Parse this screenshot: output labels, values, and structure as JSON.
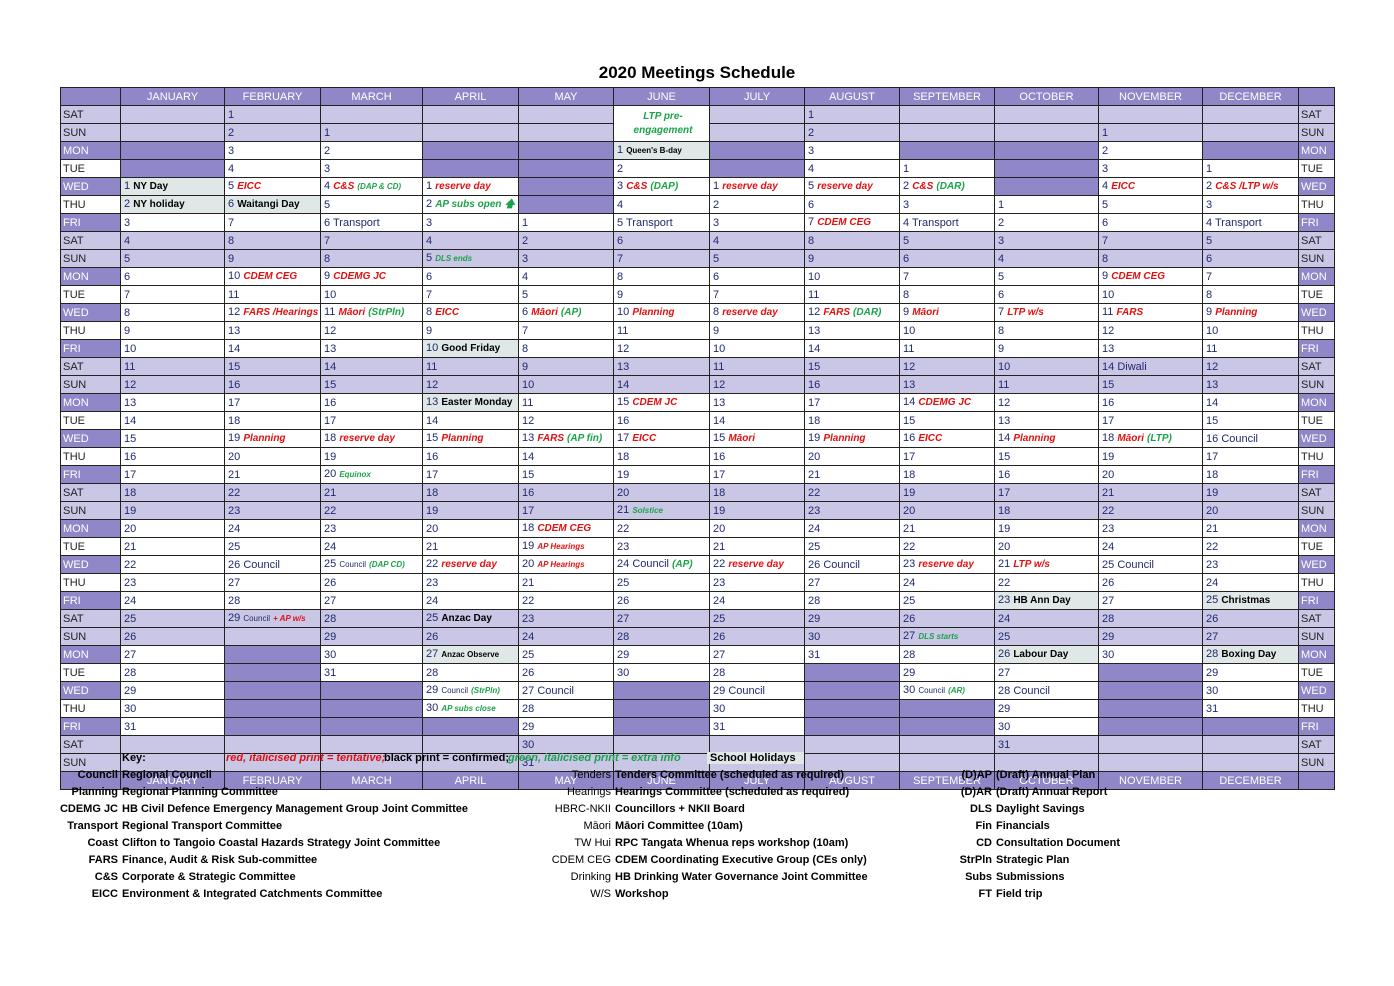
{
  "title": "2020 Meetings Schedule",
  "months": [
    "JANUARY",
    "FEBRUARY",
    "MARCH",
    "APRIL",
    "MAY",
    "JUNE",
    "JULY",
    "AUGUST",
    "SEPTEMBER",
    "OCTOBER",
    "NOVEMBER",
    "DECEMBER"
  ],
  "footer_months": [
    "JANUARY",
    "FEBRUARY",
    "MARCH",
    "APRIL",
    "MAY",
    "JUNE",
    "JULY",
    "AUGUST",
    "SEPTEMBER",
    "OCTOBER",
    "NOVEMBER",
    "DECEMBER"
  ],
  "weekdays": [
    "SAT",
    "SUN",
    "MON",
    "TUE",
    "WED",
    "THU",
    "FRI"
  ],
  "colors": {
    "header": "#8f87c8",
    "weekend": "#cac6e6",
    "highlight": "#dfe7e7",
    "tentative": "#e01010",
    "extra": "#1aa34a"
  },
  "month_start_offsets": [
    4,
    0,
    1,
    4,
    6,
    2,
    4,
    0,
    3,
    5,
    1,
    3
  ],
  "month_lengths": [
    31,
    29,
    31,
    30,
    31,
    30,
    31,
    31,
    30,
    31,
    30,
    31
  ],
  "entries": {
    "0-1": {
      "parts": [
        [
          "k",
          "NY Day"
        ]
      ],
      "hl": true
    },
    "0-2": {
      "parts": [
        [
          "k",
          "NY holiday"
        ]
      ],
      "hl": true
    },
    "1-5": {
      "parts": [
        [
          "r",
          "EICC"
        ]
      ]
    },
    "1-6": {
      "parts": [
        [
          "k",
          "Waitangi Day"
        ]
      ],
      "hl": true
    },
    "1-10": {
      "parts": [
        [
          "r",
          "CDEM CEG"
        ]
      ]
    },
    "1-12": {
      "parts": [
        [
          "r",
          "FARS /Hearings"
        ]
      ]
    },
    "1-19": {
      "parts": [
        [
          "r",
          "Planning"
        ]
      ]
    },
    "1-26": {
      "parts": [
        [
          "n",
          "Council"
        ]
      ]
    },
    "1-29": {
      "parts": [
        [
          "ns",
          "Council"
        ],
        [
          "rs",
          "+ AP w/s"
        ]
      ]
    },
    "2-4": {
      "parts": [
        [
          "r",
          "C&S"
        ],
        [
          "gs",
          "(DAP & CD)"
        ]
      ]
    },
    "2-6": {
      "parts": [
        [
          "n",
          "Transport"
        ]
      ]
    },
    "2-9": {
      "parts": [
        [
          "r",
          "CDEMG JC"
        ]
      ]
    },
    "2-11": {
      "parts": [
        [
          "r",
          "Māori"
        ],
        [
          "g",
          "(StrPln)"
        ]
      ]
    },
    "2-18": {
      "parts": [
        [
          "r",
          "reserve day"
        ]
      ]
    },
    "2-20": {
      "parts": [
        [
          "gs",
          "Equinox"
        ]
      ]
    },
    "2-25": {
      "parts": [
        [
          "ns",
          "Council"
        ],
        [
          "gs",
          "(DAP CD)"
        ]
      ]
    },
    "3-1": {
      "parts": [
        [
          "r",
          "reserve day"
        ]
      ]
    },
    "3-2": {
      "parts": [
        [
          "g",
          "AP subs open"
        ],
        [
          "g",
          "🡅"
        ]
      ]
    },
    "3-5": {
      "parts": [
        [
          "gs",
          "DLS ends"
        ]
      ]
    },
    "3-8": {
      "parts": [
        [
          "r",
          "EICC"
        ]
      ]
    },
    "3-10": {
      "parts": [
        [
          "k",
          "Good Friday"
        ]
      ],
      "hl": true
    },
    "3-13": {
      "parts": [
        [
          "k",
          "Easter Monday"
        ]
      ],
      "hl": true
    },
    "3-15": {
      "parts": [
        [
          "r",
          "Planning"
        ]
      ]
    },
    "3-22": {
      "parts": [
        [
          "r",
          "reserve day"
        ]
      ]
    },
    "3-25": {
      "parts": [
        [
          "k",
          "Anzac Day"
        ]
      ]
    },
    "3-27": {
      "parts": [
        [
          "ks",
          "Anzac Observe"
        ]
      ],
      "hl": true
    },
    "3-29": {
      "parts": [
        [
          "ns",
          "Council"
        ],
        [
          "gs",
          "(StrPln)"
        ]
      ]
    },
    "3-30": {
      "parts": [
        [
          "gs",
          "AP subs close"
        ]
      ]
    },
    "4-6": {
      "parts": [
        [
          "r",
          "Māori"
        ],
        [
          "g",
          "(AP)"
        ]
      ]
    },
    "4-13": {
      "parts": [
        [
          "r",
          "FARS"
        ],
        [
          "g",
          "(AP fin)"
        ]
      ]
    },
    "4-18": {
      "parts": [
        [
          "r",
          "CDEM CEG"
        ]
      ]
    },
    "4-19": {
      "parts": [
        [
          "rs",
          "AP Hearings"
        ]
      ]
    },
    "4-20": {
      "parts": [
        [
          "rs",
          "AP Hearings"
        ]
      ]
    },
    "4-27": {
      "parts": [
        [
          "n",
          "Council"
        ]
      ]
    },
    "5-0": {
      "parts": [
        [
          "g",
          "LTP pre-"
        ]
      ]
    },
    "5-0b": {
      "parts": [
        [
          "g",
          "engagement"
        ]
      ]
    },
    "5-1": {
      "parts": [
        [
          "ks",
          "Queen's B-day"
        ]
      ],
      "hl": true
    },
    "5-3": {
      "parts": [
        [
          "r",
          "C&S"
        ],
        [
          "g",
          "(DAP)"
        ]
      ]
    },
    "5-5": {
      "parts": [
        [
          "n",
          "Transport"
        ]
      ]
    },
    "5-10": {
      "parts": [
        [
          "r",
          "Planning"
        ]
      ]
    },
    "5-15": {
      "parts": [
        [
          "r",
          "CDEM JC"
        ]
      ]
    },
    "5-17": {
      "parts": [
        [
          "r",
          "EICC"
        ]
      ]
    },
    "5-21": {
      "parts": [
        [
          "gs",
          "Solstice"
        ]
      ]
    },
    "5-24": {
      "parts": [
        [
          "n",
          "Council"
        ],
        [
          "g",
          "(AP)"
        ]
      ]
    },
    "6-1": {
      "parts": [
        [
          "r",
          "reserve day"
        ]
      ]
    },
    "6-8": {
      "parts": [
        [
          "r",
          "reserve day"
        ]
      ]
    },
    "6-15": {
      "parts": [
        [
          "r",
          "Māori"
        ]
      ]
    },
    "6-22": {
      "parts": [
        [
          "r",
          "reserve day"
        ]
      ]
    },
    "6-29": {
      "parts": [
        [
          "n",
          "Council"
        ]
      ]
    },
    "7-5": {
      "parts": [
        [
          "r",
          "reserve day"
        ]
      ]
    },
    "7-7": {
      "parts": [
        [
          "r",
          "CDEM CEG"
        ]
      ]
    },
    "7-12": {
      "parts": [
        [
          "r",
          "FARS"
        ],
        [
          "g",
          "(DAR)"
        ]
      ]
    },
    "7-19": {
      "parts": [
        [
          "r",
          "Planning"
        ]
      ]
    },
    "7-26": {
      "parts": [
        [
          "n",
          "Council"
        ]
      ]
    },
    "8-2": {
      "parts": [
        [
          "r",
          "C&S"
        ],
        [
          "g",
          "(DAR)"
        ]
      ]
    },
    "8-4": {
      "parts": [
        [
          "n",
          "Transport"
        ]
      ]
    },
    "8-9": {
      "parts": [
        [
          "r",
          "Māori"
        ]
      ]
    },
    "8-14": {
      "parts": [
        [
          "r",
          "CDEMG JC"
        ]
      ]
    },
    "8-16": {
      "parts": [
        [
          "r",
          "EICC"
        ]
      ]
    },
    "8-23": {
      "parts": [
        [
          "r",
          "reserve day"
        ]
      ]
    },
    "8-27": {
      "parts": [
        [
          "gs",
          "DLS starts"
        ]
      ]
    },
    "8-30": {
      "parts": [
        [
          "ns",
          "Council"
        ],
        [
          "gs",
          "(AR)"
        ]
      ]
    },
    "9-7": {
      "parts": [
        [
          "r",
          "LTP w/s"
        ]
      ]
    },
    "9-14": {
      "parts": [
        [
          "r",
          "Planning"
        ]
      ]
    },
    "9-21": {
      "parts": [
        [
          "r",
          "LTP w/s"
        ]
      ]
    },
    "9-23": {
      "parts": [
        [
          "k",
          "HB Ann Day"
        ]
      ],
      "hl": true
    },
    "9-26": {
      "parts": [
        [
          "k",
          "Labour Day"
        ]
      ],
      "hl": true
    },
    "9-28": {
      "parts": [
        [
          "n",
          "Council"
        ]
      ]
    },
    "10-4": {
      "parts": [
        [
          "r",
          "EICC"
        ]
      ]
    },
    "10-9": {
      "parts": [
        [
          "r",
          "CDEM CEG"
        ]
      ]
    },
    "10-11": {
      "parts": [
        [
          "r",
          "FARS"
        ]
      ]
    },
    "10-14": {
      "parts": [
        [
          "n",
          "Diwali"
        ]
      ]
    },
    "10-18": {
      "parts": [
        [
          "r",
          "Māori"
        ],
        [
          "g",
          "(LTP)"
        ]
      ]
    },
    "10-25": {
      "parts": [
        [
          "n",
          "Council"
        ]
      ]
    },
    "11-2": {
      "parts": [
        [
          "r",
          "C&S /LTP w/s"
        ]
      ]
    },
    "11-4": {
      "parts": [
        [
          "n",
          "Transport"
        ]
      ]
    },
    "11-9": {
      "parts": [
        [
          "r",
          "Planning"
        ]
      ]
    },
    "11-16": {
      "parts": [
        [
          "n",
          "Council"
        ]
      ]
    },
    "11-25": {
      "parts": [
        [
          "k",
          "Christmas"
        ]
      ],
      "hl": true
    },
    "11-28": {
      "parts": [
        [
          "k",
          "Boxing Day"
        ]
      ],
      "hl": true
    }
  },
  "key": {
    "label": "Key:",
    "tentative": "red, italicised print = tentative;",
    "confirmed": "black print = confirmed;",
    "extra": "green, italicised print = extra info",
    "school": "School Holidays",
    "col1": [
      [
        "Council",
        "Regional Council"
      ],
      [
        "Planning",
        "Regional Planning Committee"
      ],
      [
        "CDEMG JC",
        "HB Civil Defence Emergency Management Group Joint Committee"
      ],
      [
        "Transport",
        "Regional Transport Committee"
      ],
      [
        "Coast",
        "Clifton to Tangoio Coastal Hazards Strategy Joint Committee"
      ],
      [
        "FARS",
        "Finance, Audit & Risk Sub-committee"
      ],
      [
        "C&S",
        "Corporate & Strategic Committee"
      ],
      [
        "EICC",
        "Environment & Integrated Catchments Committee"
      ]
    ],
    "col2": [
      [
        "Tenders",
        "Tenders Committee (scheduled as required)"
      ],
      [
        "Hearings",
        "Hearings Committee (scheduled as required)"
      ],
      [
        "HBRC-NKII",
        "Councillors + NKII Board"
      ],
      [
        "Māori",
        "Māori Committee (10am)"
      ],
      [
        "TW Hui",
        "RPC Tangata Whenua reps workshop (10am)"
      ],
      [
        "CDEM CEG",
        "CDEM Coordinating Executive Group (CEs only)"
      ],
      [
        "Drinking",
        "HB Drinking Water Governance Joint Committee"
      ],
      [
        "W/S",
        "Workshop"
      ]
    ],
    "col3": [
      [
        "(D)AP",
        "(Draft) Annual Plan"
      ],
      [
        "(D)AR",
        "(Draft) Annual Report"
      ],
      [
        "DLS",
        "Daylight Savings"
      ],
      [
        "Fin",
        "Financials"
      ],
      [
        "CD",
        "Consultation Document"
      ],
      [
        "StrPln",
        "Strategic Plan"
      ],
      [
        "Subs",
        "Submissions"
      ],
      [
        "FT",
        "Field trip"
      ]
    ]
  }
}
